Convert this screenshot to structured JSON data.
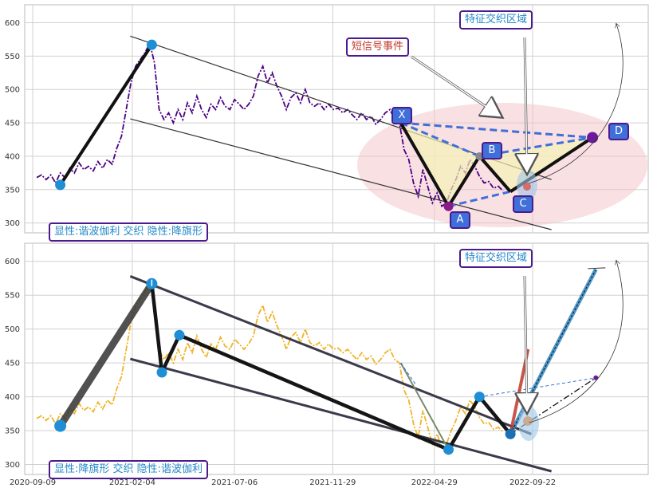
{
  "chart_data": [
    {
      "type": "line",
      "panel": "top",
      "ylim": [
        290,
        615
      ],
      "yticks": [
        300,
        350,
        400,
        450,
        500,
        550,
        600
      ],
      "series_color": "#4b0082",
      "series_style": "dash-dot",
      "price": [
        [
          "2020-09-15",
          368
        ],
        [
          "2020-09-22",
          372
        ],
        [
          "2020-09-29",
          365
        ],
        [
          "2020-10-06",
          372
        ],
        [
          "2020-10-13",
          360
        ],
        [
          "2020-10-20",
          375
        ],
        [
          "2020-10-27",
          368
        ],
        [
          "2020-11-03",
          382
        ],
        [
          "2020-11-10",
          375
        ],
        [
          "2020-11-17",
          390
        ],
        [
          "2020-11-24",
          380
        ],
        [
          "2020-12-01",
          385
        ],
        [
          "2020-12-08",
          378
        ],
        [
          "2020-12-15",
          392
        ],
        [
          "2020-12-22",
          382
        ],
        [
          "2020-12-29",
          395
        ],
        [
          "2021-01-05",
          388
        ],
        [
          "2021-01-12",
          412
        ],
        [
          "2021-01-19",
          430
        ],
        [
          "2021-01-26",
          470
        ],
        [
          "2021-02-02",
          510
        ],
        [
          "2021-02-09",
          535
        ],
        [
          "2021-02-16",
          545
        ],
        [
          "2021-02-23",
          555
        ],
        [
          "2021-03-02",
          570
        ],
        [
          "2021-03-09",
          540
        ],
        [
          "2021-03-16",
          470
        ],
        [
          "2021-03-23",
          455
        ],
        [
          "2021-03-30",
          465
        ],
        [
          "2021-04-06",
          450
        ],
        [
          "2021-04-13",
          470
        ],
        [
          "2021-04-20",
          455
        ],
        [
          "2021-04-27",
          480
        ],
        [
          "2021-05-04",
          465
        ],
        [
          "2021-05-11",
          490
        ],
        [
          "2021-05-18",
          470
        ],
        [
          "2021-05-25",
          458
        ],
        [
          "2021-06-01",
          478
        ],
        [
          "2021-06-08",
          470
        ],
        [
          "2021-06-15",
          488
        ],
        [
          "2021-06-22",
          475
        ],
        [
          "2021-06-29",
          470
        ],
        [
          "2021-07-06",
          485
        ],
        [
          "2021-07-13",
          478
        ],
        [
          "2021-07-20",
          470
        ],
        [
          "2021-07-27",
          478
        ],
        [
          "2021-08-03",
          490
        ],
        [
          "2021-08-10",
          520
        ],
        [
          "2021-08-17",
          535
        ],
        [
          "2021-08-24",
          510
        ],
        [
          "2021-08-31",
          525
        ],
        [
          "2021-09-07",
          505
        ],
        [
          "2021-09-14",
          490
        ],
        [
          "2021-09-21",
          470
        ],
        [
          "2021-09-28",
          488
        ],
        [
          "2021-10-05",
          495
        ],
        [
          "2021-10-12",
          480
        ],
        [
          "2021-10-19",
          500
        ],
        [
          "2021-10-26",
          480
        ],
        [
          "2021-11-02",
          475
        ],
        [
          "2021-11-09",
          480
        ],
        [
          "2021-11-16",
          470
        ],
        [
          "2021-11-23",
          478
        ],
        [
          "2021-11-30",
          470
        ],
        [
          "2021-12-07",
          472
        ],
        [
          "2021-12-14",
          465
        ],
        [
          "2021-12-21",
          470
        ],
        [
          "2021-12-28",
          462
        ],
        [
          "2022-01-04",
          455
        ],
        [
          "2022-01-11",
          465
        ],
        [
          "2022-01-18",
          455
        ],
        [
          "2022-01-25",
          460
        ],
        [
          "2022-02-01",
          448
        ],
        [
          "2022-02-08",
          455
        ],
        [
          "2022-02-15",
          465
        ],
        [
          "2022-02-22",
          470
        ],
        [
          "2022-03-01",
          455
        ],
        [
          "2022-03-08",
          450
        ],
        [
          "2022-03-15",
          410
        ],
        [
          "2022-03-22",
          395
        ],
        [
          "2022-03-29",
          360
        ],
        [
          "2022-04-05",
          340
        ],
        [
          "2022-04-12",
          380
        ],
        [
          "2022-04-19",
          355
        ],
        [
          "2022-04-26",
          330
        ],
        [
          "2022-05-03",
          345
        ],
        [
          "2022-05-10",
          325
        ],
        [
          "2022-05-17",
          330
        ],
        [
          "2022-05-24",
          350
        ],
        [
          "2022-05-31",
          365
        ],
        [
          "2022-06-07",
          385
        ],
        [
          "2022-06-14",
          375
        ],
        [
          "2022-06-21",
          395
        ],
        [
          "2022-06-28",
          385
        ],
        [
          "2022-07-05",
          370
        ],
        [
          "2022-07-12",
          360
        ],
        [
          "2022-07-19",
          362
        ],
        [
          "2022-07-26",
          352
        ],
        [
          "2022-08-02",
          355
        ],
        [
          "2022-08-09",
          348
        ]
      ],
      "channel": [
        [
          [
            "2021-02-01",
            580
          ],
          [
            "2022-10-20",
            365
          ]
        ],
        [
          [
            "2021-02-01",
            456
          ],
          [
            "2022-10-20",
            290
          ]
        ]
      ],
      "pattern_points": [
        {
          "date": "2020-10-20",
          "value": 357
        },
        {
          "date": "2021-03-05",
          "value": 567
        },
        {
          "label": "X",
          "date": "2022-03-10",
          "value": 450
        },
        {
          "label": "A",
          "date": "2022-05-20",
          "value": 325
        },
        {
          "label": "B",
          "date": "2022-07-05",
          "value": 400
        },
        {
          "label": "C",
          "date": "2022-08-20",
          "value": 347
        },
        {
          "label": "D",
          "date": "2022-12-20",
          "value": 428
        }
      ],
      "labels": {
        "fact_zone": "特征交织区域",
        "short_signal": "短信号事件",
        "legend": "显性:谐波伽利 交织 隐性:降旗形"
      }
    },
    {
      "type": "line",
      "panel": "bottom",
      "ylim": [
        290,
        615
      ],
      "yticks": [
        300,
        350,
        400,
        450,
        500,
        550,
        600
      ],
      "series_color": "#f0b429",
      "series_style": "dash-dot",
      "pattern_points": [
        {
          "date": "2020-10-20",
          "value": 357
        },
        {
          "date": "2021-03-05",
          "value": 567
        },
        {
          "date": "2021-03-20",
          "value": 436
        },
        {
          "date": "2021-04-15",
          "value": 491
        },
        {
          "date": "2022-05-20",
          "value": 322
        },
        {
          "date": "2022-07-05",
          "value": 400
        },
        {
          "date": "2022-08-20",
          "value": 345
        }
      ],
      "projection_end": {
        "date": "2022-12-25",
        "value": 588
      },
      "alt_end": {
        "date": "2022-12-25",
        "value": 428
      },
      "labels": {
        "fact_zone": "特征交织区域",
        "legend": "显性:降旗形 交织 隐性:谐波伽利"
      },
      "xticks": [
        "2020-09-09",
        "2021-02-04",
        "2021-07-06",
        "2021-11-29",
        "2022-04-29",
        "2022-09-22"
      ]
    }
  ]
}
